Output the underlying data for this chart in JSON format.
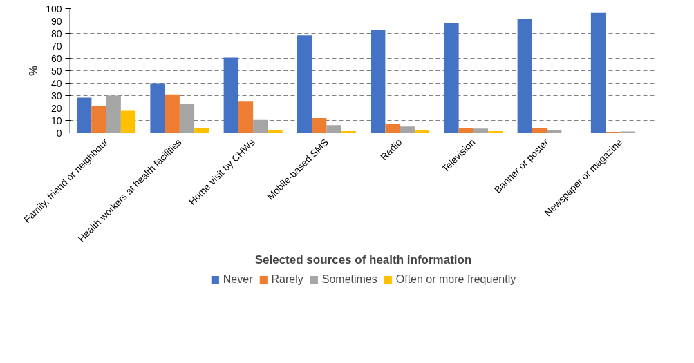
{
  "chart_data": {
    "type": "bar",
    "xlabel": "Selected sources of health information",
    "ylabel": "%",
    "categories": [
      "Family, friend or neighbour",
      "Health workers at health facilities",
      "Home visit by CHWs",
      "Mobile-based SMS",
      "Radio",
      "Television",
      "Banner or poster",
      "Newspaper or magazine"
    ],
    "series": [
      {
        "name": "Never",
        "color": "#4472c4",
        "values": [
          28.3,
          40,
          60.6,
          78.5,
          82.7,
          88.5,
          91.7,
          96.5
        ]
      },
      {
        "name": "Rarely",
        "color": "#ed7d31",
        "values": [
          22,
          31,
          25.2,
          12,
          7.2,
          4,
          4,
          0.9
        ]
      },
      {
        "name": "Sometimes",
        "color": "#a5a5a5",
        "values": [
          30,
          23,
          10.4,
          6.2,
          5.1,
          3.5,
          1.9,
          1.1
        ]
      },
      {
        "name": "Often or more frequently",
        "color": "#ffc000",
        "values": [
          17.8,
          4,
          2,
          1.4,
          1.9,
          1.4,
          0,
          0
        ]
      }
    ],
    "ylim": [
      0,
      100
    ],
    "yticks": [
      0,
      10,
      20,
      30,
      40,
      50,
      60,
      70,
      80,
      90,
      100
    ],
    "grid": "y",
    "legend": "bottom"
  }
}
